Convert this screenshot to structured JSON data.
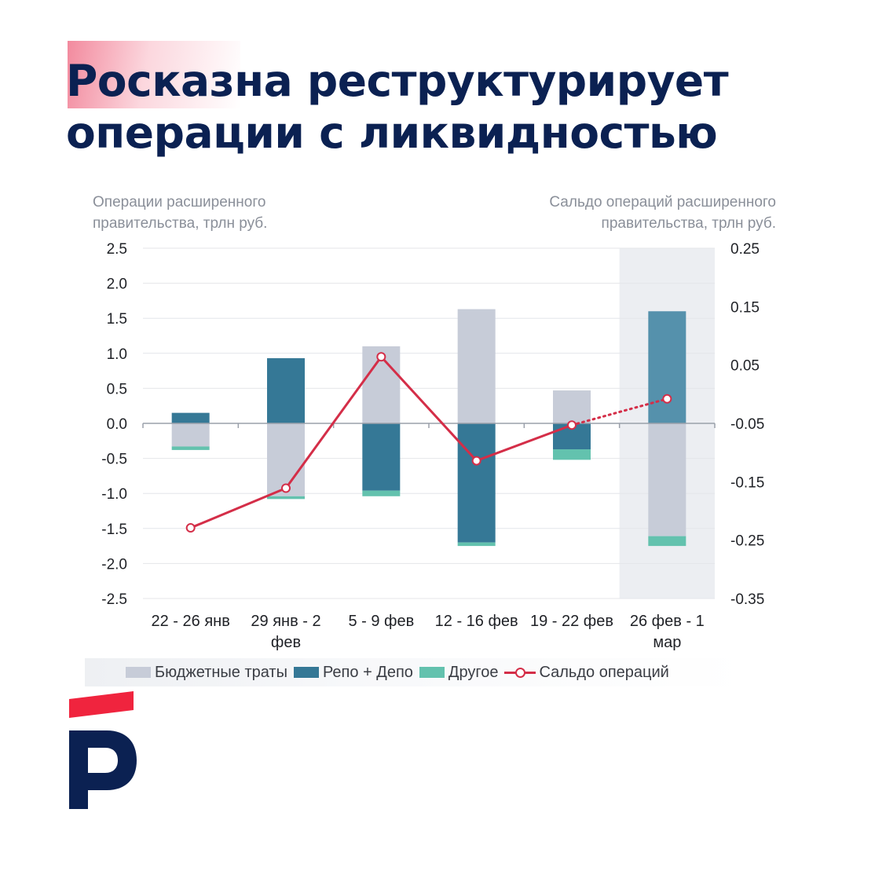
{
  "header": {
    "title_line1": "Росказна реструктурирует",
    "title_line2": "операции с ликвидностью"
  },
  "axis_titles": {
    "left": "Операции расширенного правительства, трлн руб.",
    "right": "Сальдо операций расширенного правительства, трлн руб."
  },
  "colors": {
    "title": "#0b2152",
    "budget": "#c7ccd8",
    "repo": "#357896",
    "repo_highlight": "#5591ac",
    "other": "#63c2ae",
    "saldo": "#d42e48",
    "shade": "#eceef2",
    "logo_red": "#f0243e",
    "logo_blue": "#0b2152"
  },
  "legend": {
    "budget": "Бюджетные траты",
    "repo": "Репо + Депо",
    "other": "Другое",
    "saldo": "Сальдо операций"
  },
  "logo": {
    "icon": "p-brand-logo-icon"
  },
  "chart_data": {
    "type": "bar",
    "stacked": true,
    "categories": [
      "22 - 26 янв",
      "29 янв - 2 фев",
      "5 - 9 фев",
      "12 - 16 фев",
      "19 - 22 фев",
      "26 фев - 1 мар"
    ],
    "category_lines": [
      [
        "22 - 26 янв"
      ],
      [
        "29 янв - 2",
        "фев"
      ],
      [
        "5 - 9 фев"
      ],
      [
        "12 - 16 фев"
      ],
      [
        "19 - 22 фев"
      ],
      [
        "26 фев - 1",
        "мар"
      ]
    ],
    "highlighted_category_index": 5,
    "series": [
      {
        "name": "Бюджетные траты",
        "key": "budget",
        "values_positive": [
          0,
          0,
          1.1,
          1.63,
          0.47,
          0
        ],
        "values_negative": [
          -0.33,
          -1.04,
          0,
          0,
          0,
          -1.61
        ]
      },
      {
        "name": "Репо + Депо",
        "key": "repo",
        "values_positive": [
          0.15,
          0.93,
          0,
          0,
          0,
          1.6
        ],
        "values_negative": [
          0,
          0,
          -0.96,
          -1.7,
          -0.37,
          0
        ]
      },
      {
        "name": "Другое",
        "key": "other",
        "values_positive": [
          0,
          0,
          0,
          0,
          0,
          0
        ],
        "values_negative": [
          -0.05,
          -0.04,
          -0.08,
          -0.05,
          -0.15,
          -0.14
        ]
      }
    ],
    "line_series": {
      "name": "Сальдо операций",
      "axis": "right",
      "values": [
        -0.229,
        -0.161,
        0.064,
        -0.114,
        -0.053,
        -0.008
      ],
      "dotted_from_index": 4
    },
    "ylim_left": [
      -2.5,
      2.5
    ],
    "yticks_left": [
      "2.5",
      "2.0",
      "1.5",
      "1.0",
      "0.5",
      "0.0",
      "-0.5",
      "-1.0",
      "-1.5",
      "-2.0",
      "-2.5"
    ],
    "ylim_right": [
      -0.35,
      0.25
    ],
    "yticks_right": [
      "0.25",
      "0.15",
      "0.05",
      "-0.05",
      "-0.15",
      "-0.25",
      "-0.35"
    ],
    "grid": true
  }
}
